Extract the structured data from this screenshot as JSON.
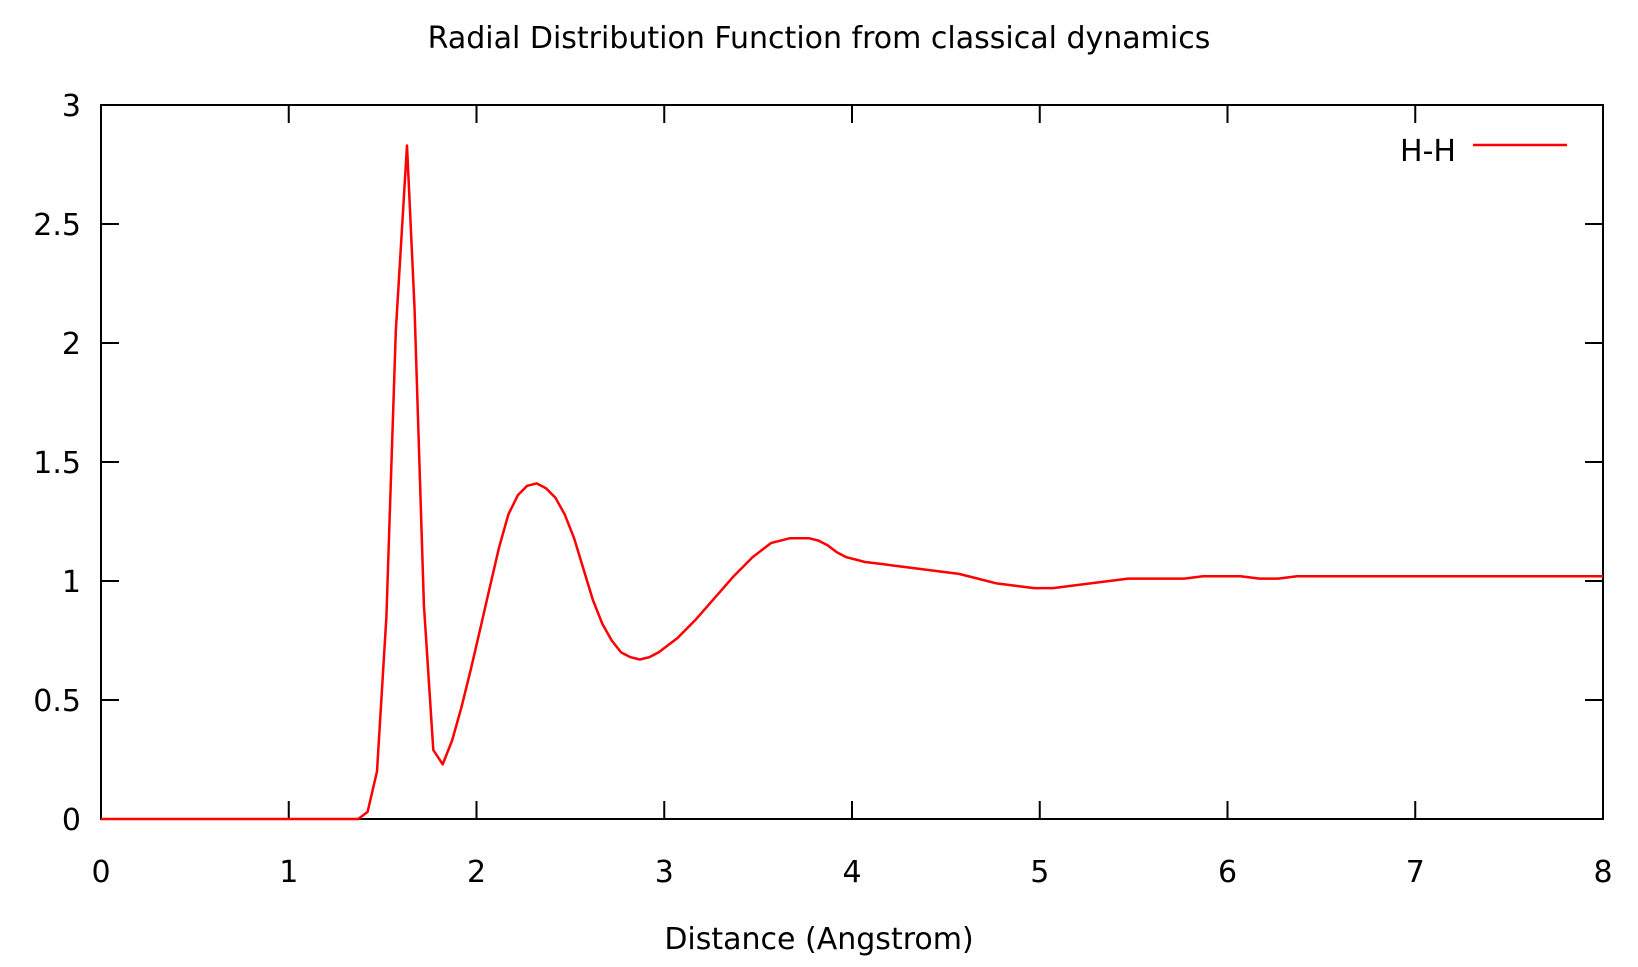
{
  "chart_data": {
    "type": "line",
    "title": "Radial Distribution Function from classical dynamics",
    "xlabel": "Distance (Angstrom)",
    "ylabel": "",
    "xlim": [
      0,
      8
    ],
    "ylim": [
      0,
      3
    ],
    "xticks": [
      "0",
      "1",
      "2",
      "3",
      "4",
      "5",
      "6",
      "7",
      "8"
    ],
    "yticks": [
      "0",
      "0.5",
      "1",
      "1.5",
      "2",
      "2.5",
      "3"
    ],
    "grid": false,
    "legend_position": "top-right",
    "series": [
      {
        "name": "H-H",
        "color": "#ff0000",
        "x": [
          0,
          0.5,
          1.0,
          1.3,
          1.37,
          1.42,
          1.47,
          1.52,
          1.57,
          1.63,
          1.67,
          1.72,
          1.77,
          1.82,
          1.87,
          1.92,
          1.97,
          2.02,
          2.07,
          2.12,
          2.17,
          2.22,
          2.27,
          2.32,
          2.37,
          2.42,
          2.47,
          2.52,
          2.57,
          2.62,
          2.67,
          2.72,
          2.77,
          2.82,
          2.87,
          2.92,
          2.97,
          3.02,
          3.07,
          3.12,
          3.17,
          3.27,
          3.37,
          3.47,
          3.57,
          3.67,
          3.77,
          3.82,
          3.87,
          3.92,
          3.97,
          4.07,
          4.17,
          4.27,
          4.37,
          4.47,
          4.57,
          4.67,
          4.77,
          4.87,
          4.97,
          5.07,
          5.17,
          5.27,
          5.37,
          5.47,
          5.57,
          5.67,
          5.77,
          5.87,
          5.97,
          6.07,
          6.17,
          6.27,
          6.37,
          6.47,
          6.57,
          6.67,
          6.77,
          6.87,
          6.97,
          7.07,
          7.17,
          7.27,
          7.37,
          7.47,
          7.57,
          7.67,
          7.77,
          7.87,
          8.0
        ],
        "values": [
          0,
          0,
          0,
          0,
          0.0,
          0.03,
          0.2,
          0.85,
          2.05,
          2.83,
          2.15,
          0.9,
          0.29,
          0.23,
          0.33,
          0.47,
          0.63,
          0.8,
          0.97,
          1.14,
          1.28,
          1.36,
          1.4,
          1.41,
          1.39,
          1.35,
          1.28,
          1.18,
          1.05,
          0.92,
          0.82,
          0.75,
          0.7,
          0.68,
          0.67,
          0.68,
          0.7,
          0.73,
          0.76,
          0.8,
          0.84,
          0.93,
          1.02,
          1.1,
          1.16,
          1.18,
          1.18,
          1.17,
          1.15,
          1.12,
          1.1,
          1.08,
          1.07,
          1.06,
          1.05,
          1.04,
          1.03,
          1.01,
          0.99,
          0.98,
          0.97,
          0.97,
          0.98,
          0.99,
          1.0,
          1.01,
          1.01,
          1.01,
          1.01,
          1.02,
          1.02,
          1.02,
          1.01,
          1.01,
          1.02,
          1.02,
          1.02,
          1.02,
          1.02,
          1.02,
          1.02,
          1.02,
          1.02,
          1.02,
          1.02,
          1.02,
          1.02,
          1.02,
          1.02,
          1.02,
          1.02
        ]
      }
    ]
  }
}
